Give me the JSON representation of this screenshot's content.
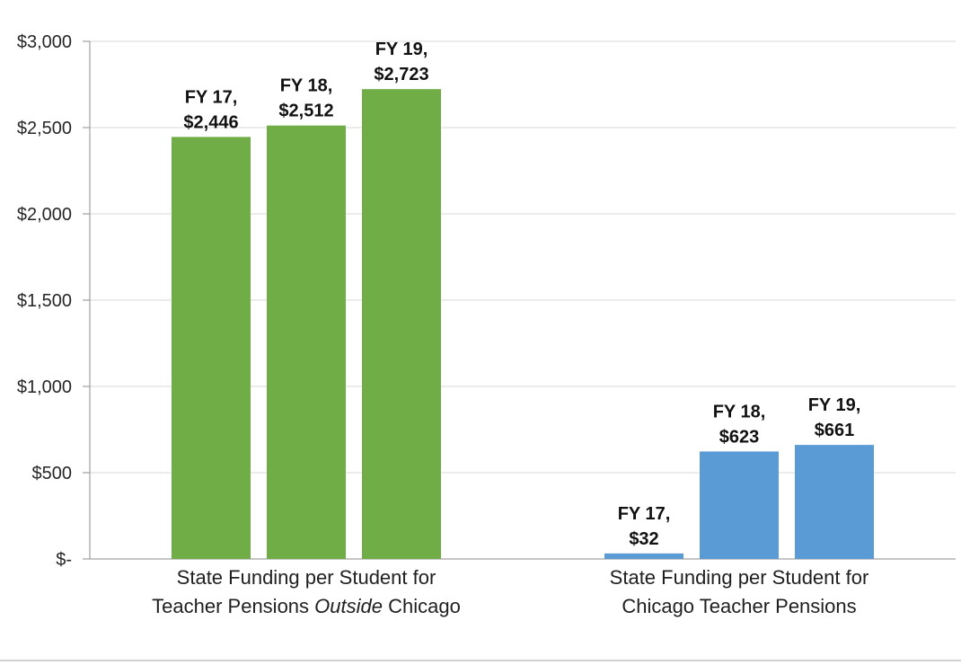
{
  "chart_data": {
    "type": "bar",
    "categories": [
      {
        "line1": "State Funding per Student for",
        "line2_pre": "Teacher Pensions ",
        "line2_em": "Outside",
        "line2_post": " Chicago"
      },
      {
        "line1": "State Funding per Student for",
        "line2_pre": "Chicago Teacher Pensions",
        "line2_em": "",
        "line2_post": ""
      }
    ],
    "series": [
      {
        "values": [
          2446,
          32
        ],
        "labels": [
          "FY 17,",
          "FY 17,"
        ],
        "value_labels": [
          "$2,446",
          "$32"
        ]
      },
      {
        "values": [
          2512,
          623
        ],
        "labels": [
          "FY 18,",
          "FY 18,"
        ],
        "value_labels": [
          "$2,512",
          "$623"
        ]
      },
      {
        "values": [
          2723,
          661
        ],
        "labels": [
          "FY 19,",
          "FY 19,"
        ],
        "value_labels": [
          "$2,723",
          "$661"
        ]
      }
    ],
    "category_colors": [
      "#70ad47",
      "#5b9bd5"
    ],
    "ylim": [
      0,
      3000
    ],
    "yticks": [
      0,
      500,
      1000,
      1500,
      2000,
      2500,
      3000
    ],
    "ytick_labels": [
      "$-",
      "$500",
      "$1,000",
      "$1,500",
      "$2,000",
      "$2,500",
      "$3,000"
    ],
    "grid": true,
    "legend": "none",
    "title": "",
    "xlabel": "",
    "ylabel": ""
  }
}
